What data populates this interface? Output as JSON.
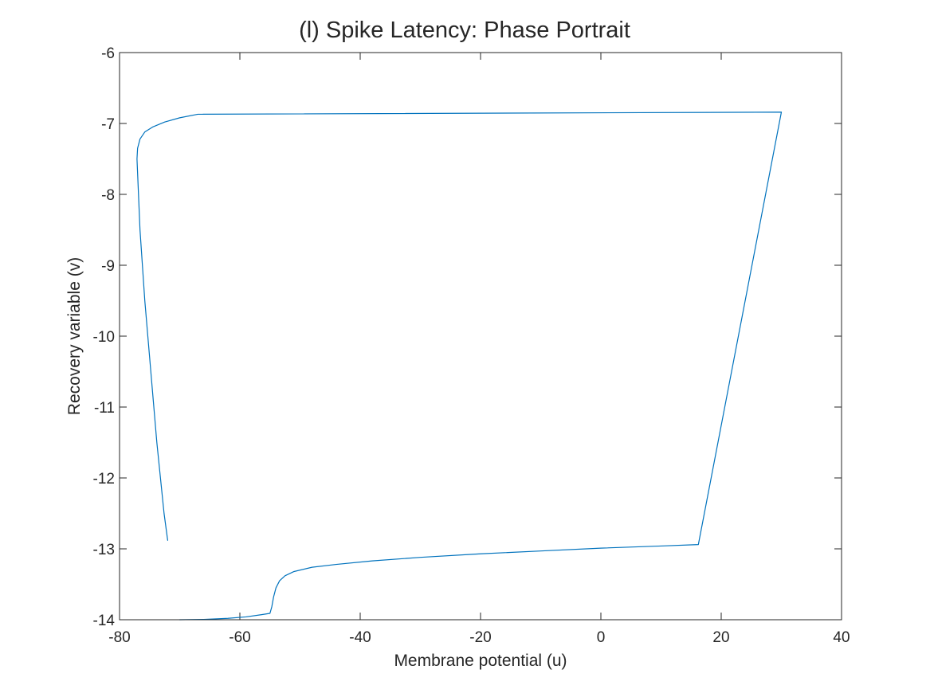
{
  "chart_data": {
    "type": "line",
    "title": "(l) Spike Latency: Phase Portrait",
    "xlabel": "Membrane potential (u)",
    "ylabel": "Recovery variable (v)",
    "xlim": [
      -80,
      40
    ],
    "ylim": [
      -14,
      -6
    ],
    "xticks": [
      -80,
      -60,
      -40,
      -20,
      0,
      20,
      40
    ],
    "yticks": [
      -14,
      -13,
      -12,
      -11,
      -10,
      -9,
      -8,
      -7,
      -6
    ],
    "grid": false,
    "box": true,
    "line_color": "#0072BD",
    "series": [
      {
        "points": [
          [
            -70.0,
            -14.0
          ],
          [
            -66.0,
            -13.995
          ],
          [
            -62.0,
            -13.98
          ],
          [
            -59.0,
            -13.96
          ],
          [
            -56.5,
            -13.93
          ],
          [
            -55.0,
            -13.91
          ],
          [
            -54.7,
            -13.82
          ],
          [
            -54.4,
            -13.68
          ],
          [
            -54.0,
            -13.55
          ],
          [
            -53.4,
            -13.45
          ],
          [
            -52.5,
            -13.38
          ],
          [
            -51.0,
            -13.32
          ],
          [
            -48.0,
            -13.26
          ],
          [
            -44.0,
            -13.22
          ],
          [
            -38.0,
            -13.17
          ],
          [
            -30.0,
            -13.12
          ],
          [
            -20.0,
            -13.07
          ],
          [
            -10.0,
            -13.03
          ],
          [
            0.0,
            -12.99
          ],
          [
            10.0,
            -12.96
          ],
          [
            16.2,
            -12.94
          ],
          [
            30.0,
            -6.84
          ],
          [
            -67.0,
            -6.87
          ],
          [
            -70.0,
            -6.92
          ],
          [
            -72.5,
            -6.98
          ],
          [
            -74.5,
            -7.05
          ],
          [
            -75.8,
            -7.12
          ],
          [
            -76.6,
            -7.22
          ],
          [
            -77.0,
            -7.35
          ],
          [
            -77.1,
            -7.5
          ],
          [
            -77.0,
            -7.7
          ],
          [
            -76.6,
            -8.5
          ],
          [
            -75.8,
            -9.5
          ],
          [
            -74.8,
            -10.5
          ],
          [
            -73.8,
            -11.5
          ],
          [
            -72.6,
            -12.5
          ],
          [
            -72.0,
            -12.88
          ]
        ]
      }
    ]
  }
}
